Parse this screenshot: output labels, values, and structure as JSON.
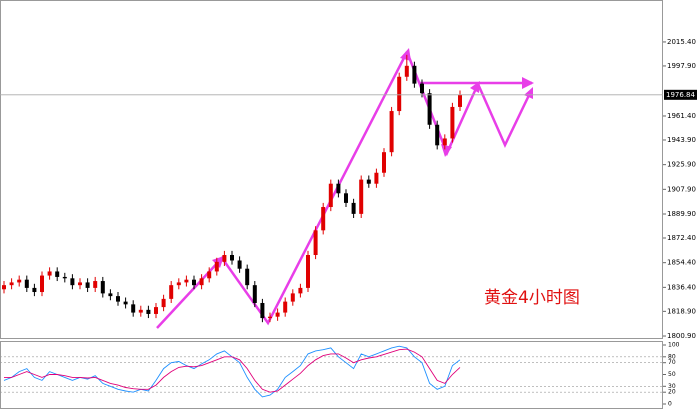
{
  "chart_data": [
    {
      "type": "candlestick",
      "up_color": "#e00000",
      "down_color": "#000000",
      "ylim": [
        1798,
        2046
      ],
      "yticks": [
        {
          "value": 2015.4,
          "label": "2015.40"
        },
        {
          "value": 1997.9,
          "label": "1997.90"
        },
        {
          "value": 1961.4,
          "label": "1961.40"
        },
        {
          "value": 1943.9,
          "label": "1943.90"
        },
        {
          "value": 1925.9,
          "label": "1925.90"
        },
        {
          "value": 1907.9,
          "label": "1907.90"
        },
        {
          "value": 1889.9,
          "label": "1889.90"
        },
        {
          "value": 1872.4,
          "label": "1872.40"
        },
        {
          "value": 1854.4,
          "label": "1854.40"
        },
        {
          "value": 1836.4,
          "label": "1836.40"
        },
        {
          "value": 1818.9,
          "label": "1818.90"
        },
        {
          "value": 1800.9,
          "label": "1800.90"
        }
      ],
      "current_price": 1976.84,
      "annotation": "黄金4小时图",
      "open": [
        1835,
        1838,
        1840,
        1842,
        1836,
        1833,
        1845,
        1848,
        1844,
        1843,
        1838,
        1840,
        1836,
        1841,
        1832,
        1830,
        1826,
        1824,
        1818,
        1820,
        1817,
        1822,
        1828,
        1838,
        1840,
        1842,
        1838,
        1843,
        1848,
        1855,
        1860,
        1856,
        1850,
        1838,
        1825,
        1814,
        1815,
        1818,
        1826,
        1832,
        1836,
        1860,
        1878,
        1895,
        1912,
        1905,
        1898,
        1890,
        1915,
        1912,
        1920,
        1935,
        1965,
        1990,
        1998,
        1985,
        1978,
        1955,
        1940,
        1945,
        1968
      ],
      "high": [
        1841,
        1843,
        1845,
        1845,
        1839,
        1848,
        1851,
        1851,
        1847,
        1846,
        1843,
        1843,
        1844,
        1844,
        1835,
        1833,
        1829,
        1827,
        1823,
        1823,
        1825,
        1831,
        1841,
        1843,
        1845,
        1845,
        1846,
        1851,
        1858,
        1863,
        1863,
        1859,
        1853,
        1841,
        1828,
        1818,
        1821,
        1829,
        1835,
        1839,
        1863,
        1881,
        1898,
        1915,
        1915,
        1908,
        1901,
        1918,
        1918,
        1923,
        1938,
        1968,
        1993,
        2006,
        2001,
        1988,
        1981,
        1958,
        1948,
        1971,
        1980
      ],
      "low": [
        1832,
        1835,
        1837,
        1833,
        1830,
        1830,
        1842,
        1841,
        1840,
        1835,
        1835,
        1833,
        1833,
        1829,
        1827,
        1823,
        1821,
        1815,
        1815,
        1814,
        1814,
        1819,
        1825,
        1835,
        1837,
        1835,
        1835,
        1840,
        1845,
        1852,
        1853,
        1847,
        1835,
        1822,
        1811,
        1811,
        1812,
        1815,
        1823,
        1829,
        1833,
        1857,
        1875,
        1892,
        1902,
        1895,
        1887,
        1887,
        1909,
        1909,
        1917,
        1932,
        1962,
        1987,
        1982,
        1975,
        1952,
        1937,
        1937,
        1942,
        1965
      ],
      "close": [
        1838,
        1840,
        1842,
        1836,
        1833,
        1845,
        1848,
        1844,
        1843,
        1838,
        1840,
        1836,
        1841,
        1832,
        1830,
        1826,
        1824,
        1818,
        1820,
        1817,
        1822,
        1828,
        1838,
        1840,
        1842,
        1838,
        1843,
        1848,
        1855,
        1860,
        1856,
        1850,
        1838,
        1825,
        1814,
        1815,
        1818,
        1826,
        1832,
        1836,
        1860,
        1878,
        1895,
        1912,
        1905,
        1898,
        1890,
        1915,
        1912,
        1920,
        1935,
        1965,
        1990,
        1998,
        1985,
        1978,
        1955,
        1940,
        1945,
        1968,
        1977
      ]
    },
    {
      "type": "line",
      "ylim": [
        0,
        100
      ],
      "yticks": [
        100,
        80,
        70,
        50,
        30,
        20,
        0
      ],
      "levels": [
        80,
        70,
        30,
        20
      ],
      "series": [
        {
          "color": "#1e90ff",
          "values": [
            40,
            45,
            55,
            60,
            45,
            40,
            55,
            50,
            45,
            40,
            45,
            42,
            48,
            35,
            30,
            25,
            22,
            20,
            25,
            22,
            40,
            60,
            70,
            72,
            65,
            60,
            68,
            75,
            85,
            90,
            80,
            70,
            45,
            25,
            12,
            15,
            25,
            45,
            55,
            65,
            85,
            90,
            92,
            95,
            80,
            70,
            60,
            85,
            80,
            85,
            90,
            95,
            98,
            95,
            80,
            70,
            35,
            25,
            30,
            65,
            75
          ]
        },
        {
          "color": "#e0007a",
          "values": [
            45,
            45,
            50,
            55,
            50,
            45,
            50,
            50,
            48,
            45,
            45,
            44,
            45,
            40,
            35,
            32,
            28,
            26,
            25,
            25,
            32,
            45,
            55,
            62,
            64,
            63,
            65,
            70,
            75,
            80,
            80,
            75,
            60,
            40,
            25,
            20,
            22,
            32,
            42,
            52,
            65,
            75,
            82,
            85,
            85,
            78,
            70,
            75,
            78,
            80,
            84,
            88,
            92,
            93,
            88,
            80,
            60,
            40,
            35,
            50,
            62
          ]
        }
      ]
    }
  ]
}
